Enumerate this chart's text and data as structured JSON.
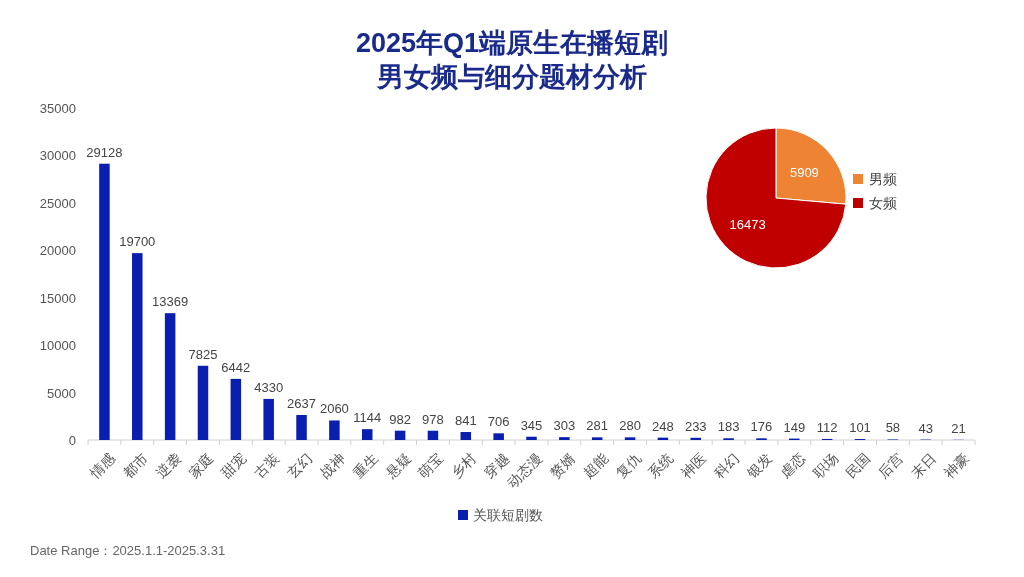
{
  "chart_data": [
    {
      "type": "bar",
      "title": "2025年Q1端原生在播短剧",
      "subtitle": "男女频与细分题材分析",
      "categories": [
        "情感",
        "都市",
        "逆袭",
        "家庭",
        "甜宠",
        "古装",
        "玄幻",
        "战神",
        "重生",
        "悬疑",
        "萌宝",
        "乡村",
        "穿越",
        "动态漫",
        "赘婿",
        "超能",
        "复仇",
        "系统",
        "神医",
        "科幻",
        "银发",
        "虐恋",
        "职场",
        "民国",
        "后宫",
        "末日",
        "神豪"
      ],
      "series": [
        {
          "name": "关联短剧数",
          "color": "#0a1fb0",
          "values": [
            29128,
            19700,
            13369,
            7825,
            6442,
            4330,
            2637,
            2060,
            1144,
            982,
            978,
            841,
            706,
            345,
            303,
            281,
            280,
            248,
            233,
            183,
            176,
            149,
            112,
            101,
            58,
            43,
            21
          ]
        }
      ],
      "ylim": [
        0,
        35000
      ],
      "yticks": [
        0,
        5000,
        10000,
        15000,
        20000,
        25000,
        30000,
        35000
      ],
      "data_labels": true,
      "legend": "bottom",
      "annotations": [
        "Date Range：2025.1.1-2025.3.31"
      ]
    },
    {
      "type": "pie",
      "categories": [
        "男频",
        "女频"
      ],
      "values": [
        5909,
        16473
      ],
      "colors": [
        "#ee8433",
        "#c00000"
      ],
      "data_labels": true,
      "legend": "right"
    }
  ]
}
